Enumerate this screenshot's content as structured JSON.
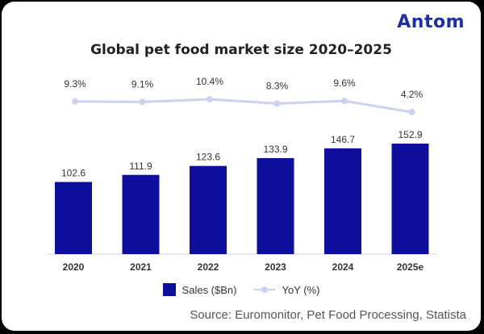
{
  "brand": {
    "logo_text": "Antom",
    "accent": "#1e2ea8",
    "accent_dot": "#2bb3e6"
  },
  "chart_data": {
    "type": "bar",
    "title": "Global pet food market size 2020–2025",
    "categories": [
      "2020",
      "2021",
      "2022",
      "2023",
      "2024",
      "2025e"
    ],
    "series": [
      {
        "name": "Sales ($Bn)",
        "type": "bar",
        "values": [
          102.6,
          111.9,
          123.6,
          133.9,
          146.7,
          152.9
        ],
        "labels": [
          "102.6",
          "111.9",
          "123.6",
          "133.9",
          "146.7",
          "152.9"
        ],
        "color": "#0f0f9e"
      },
      {
        "name": "YoY (%)",
        "type": "line",
        "values": [
          9.3,
          9.1,
          10.4,
          8.3,
          9.6,
          4.2
        ],
        "labels": [
          "9.3%",
          "9.1%",
          "10.4%",
          "8.3%",
          "9.6%",
          "4.2%"
        ],
        "color": "#c9d2ee"
      }
    ],
    "ylim_bar": [
      0,
      165
    ],
    "ylim_line": [
      0,
      30
    ],
    "xlabel": "",
    "ylabel": "",
    "grid": false,
    "legend": "bottom-center"
  },
  "legend": {
    "bar_label": "Sales ($Bn)",
    "line_label": "YoY (%)"
  },
  "source": "Source: Euromonitor, Pet Food Processing, Statista"
}
